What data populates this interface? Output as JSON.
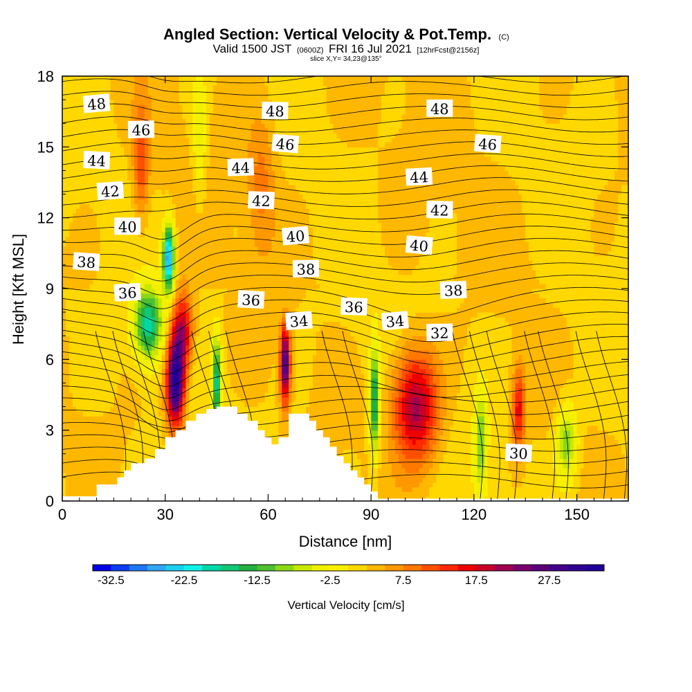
{
  "header": {
    "title": "Angled Section: Vertical Velocity & Pot.Temp.",
    "title_suffix": "(C)",
    "valid_prefix": "Valid 1500 JST",
    "valid_utc": "(0600Z)",
    "valid_date": "FRI 16 Jul 2021",
    "forecast": "[12hrFcst@2156z]",
    "slice": "slice X,Y= 34,23@135°"
  },
  "chart_data": {
    "type": "heatmap",
    "title": "Angled Section: Vertical Velocity & Pot.Temp. (C)",
    "xlabel": "Distance [nm]",
    "ylabel": "Height [Kft MSL]",
    "xlim": [
      0,
      165
    ],
    "ylim": [
      0,
      18
    ],
    "xticks": [
      0,
      30,
      60,
      90,
      120,
      150
    ],
    "yticks": [
      0,
      3,
      6,
      9,
      12,
      15,
      18
    ],
    "xtick_labels": [
      "0",
      "30",
      "60",
      "90",
      "120",
      "150"
    ],
    "ytick_labels": [
      "0",
      "3",
      "6",
      "9",
      "12",
      "15",
      "18"
    ],
    "colorbar": {
      "title": "Vertical Velocity [cm/s]",
      "min": -35,
      "max": 35,
      "step": 2.5,
      "labels": [
        "-32.5",
        "-22.5",
        "-12.5",
        "-2.5",
        "7.5",
        "17.5",
        "27.5"
      ],
      "label_values": [
        -32.5,
        -22.5,
        -12.5,
        -2.5,
        7.5,
        17.5,
        27.5
      ],
      "colors": [
        "#0000e8",
        "#0a3cf0",
        "#1e78f5",
        "#2ea8f5",
        "#1ecef0",
        "#10f0e8",
        "#00d8a8",
        "#10c878",
        "#22b040",
        "#50c030",
        "#8ad818",
        "#c8e800",
        "#f0f000",
        "#f8f000",
        "#ffd800",
        "#ffb800",
        "#ff9800",
        "#ff7800",
        "#ff5000",
        "#ff2800",
        "#ee0000",
        "#c80028",
        "#a00050",
        "#7a006e",
        "#5a007a",
        "#440088",
        "#300090",
        "#200098"
      ]
    },
    "velocity_features": [
      {
        "kind": "updraft",
        "x": 33,
        "y": 5.0,
        "sx": 2.6,
        "sy": 1.8,
        "value": 33
      },
      {
        "kind": "updraft",
        "x": 35,
        "y": 7.2,
        "sx": 3.0,
        "sy": 1.6,
        "value": 18
      },
      {
        "kind": "downdraft",
        "x": 25,
        "y": 7.5,
        "sx": 4.0,
        "sy": 1.5,
        "value": -20
      },
      {
        "kind": "downdraft",
        "x": 31,
        "y": 10.3,
        "sx": 1.6,
        "sy": 1.4,
        "value": -30
      },
      {
        "kind": "downdraft",
        "x": 45,
        "y": 5.0,
        "sx": 1.2,
        "sy": 2.0,
        "value": -20
      },
      {
        "kind": "updraft",
        "x": 65,
        "y": 5.8,
        "sx": 1.4,
        "sy": 1.6,
        "value": 28
      },
      {
        "kind": "downdraft",
        "x": 91,
        "y": 4.2,
        "sx": 1.3,
        "sy": 2.2,
        "value": -20
      },
      {
        "kind": "updraft",
        "x": 103,
        "y": 4.0,
        "sx": 6.5,
        "sy": 2.4,
        "value": 20
      },
      {
        "kind": "downdraft",
        "x": 122,
        "y": 2.5,
        "sx": 1.8,
        "sy": 2.2,
        "value": -12
      },
      {
        "kind": "updraft",
        "x": 133,
        "y": 3.8,
        "sx": 1.8,
        "sy": 1.8,
        "value": 14
      },
      {
        "kind": "downdraft",
        "x": 147,
        "y": 2.5,
        "sx": 3.0,
        "sy": 1.6,
        "value": -12
      },
      {
        "kind": "updraft",
        "x": 23,
        "y": 14.3,
        "sx": 2.2,
        "sy": 2.4,
        "value": 10
      },
      {
        "kind": "updraft",
        "x": 58,
        "y": 13.5,
        "sx": 4.0,
        "sy": 3.0,
        "value": 6
      },
      {
        "kind": "downdraft",
        "x": 40,
        "y": 15.5,
        "sx": 2.0,
        "sy": 3.0,
        "value": -6
      }
    ],
    "isentropes_c": [
      30,
      32,
      34,
      36,
      38,
      40,
      42,
      44,
      46,
      48
    ],
    "contour_labels": [
      {
        "text": "48",
        "x": 10,
        "y": 16.8
      },
      {
        "text": "46",
        "x": 23,
        "y": 15.7
      },
      {
        "text": "44",
        "x": 10,
        "y": 14.4
      },
      {
        "text": "42",
        "x": 14,
        "y": 13.1
      },
      {
        "text": "40",
        "x": 19,
        "y": 11.6
      },
      {
        "text": "38",
        "x": 7,
        "y": 10.1
      },
      {
        "text": "36",
        "x": 19,
        "y": 8.8
      },
      {
        "text": "48",
        "x": 62,
        "y": 16.5
      },
      {
        "text": "46",
        "x": 65,
        "y": 15.1
      },
      {
        "text": "44",
        "x": 52,
        "y": 14.1
      },
      {
        "text": "42",
        "x": 58,
        "y": 12.7
      },
      {
        "text": "40",
        "x": 68,
        "y": 11.2
      },
      {
        "text": "38",
        "x": 71,
        "y": 9.8
      },
      {
        "text": "36",
        "x": 55,
        "y": 8.5
      },
      {
        "text": "34",
        "x": 69,
        "y": 7.6
      },
      {
        "text": "48",
        "x": 110,
        "y": 16.6
      },
      {
        "text": "46",
        "x": 124,
        "y": 15.1
      },
      {
        "text": "44",
        "x": 104,
        "y": 13.7
      },
      {
        "text": "42",
        "x": 110,
        "y": 12.3
      },
      {
        "text": "40",
        "x": 104,
        "y": 10.8
      },
      {
        "text": "38",
        "x": 114,
        "y": 8.9
      },
      {
        "text": "36",
        "x": 85,
        "y": 8.2
      },
      {
        "text": "34",
        "x": 97,
        "y": 7.6
      },
      {
        "text": "32",
        "x": 110,
        "y": 7.1
      },
      {
        "text": "30",
        "x": 133,
        "y": 2.0
      }
    ],
    "terrain_kft": [
      [
        0,
        0.2
      ],
      [
        10,
        0.2
      ],
      [
        10,
        0.7
      ],
      [
        16,
        0.7
      ],
      [
        16,
        1.0
      ],
      [
        18,
        1.0
      ],
      [
        18,
        1.3
      ],
      [
        20,
        1.3
      ],
      [
        20,
        1.6
      ],
      [
        24,
        1.6
      ],
      [
        24,
        1.8
      ],
      [
        27,
        1.8
      ],
      [
        27,
        2.2
      ],
      [
        30,
        2.2
      ],
      [
        30,
        2.7
      ],
      [
        33,
        2.7
      ],
      [
        33,
        3.0
      ],
      [
        36,
        3.0
      ],
      [
        36,
        3.4
      ],
      [
        39,
        3.4
      ],
      [
        39,
        3.7
      ],
      [
        42,
        3.7
      ],
      [
        42,
        3.9
      ],
      [
        45,
        3.9
      ],
      [
        45,
        4.0
      ],
      [
        51,
        4.0
      ],
      [
        51,
        3.7
      ],
      [
        54,
        3.7
      ],
      [
        54,
        3.4
      ],
      [
        57,
        3.4
      ],
      [
        57,
        3.0
      ],
      [
        59,
        3.0
      ],
      [
        59,
        2.7
      ],
      [
        61,
        2.7
      ],
      [
        61,
        2.4
      ],
      [
        63,
        2.4
      ],
      [
        63,
        2.7
      ],
      [
        66,
        2.7
      ],
      [
        66,
        3.7
      ],
      [
        72,
        3.7
      ],
      [
        72,
        3.4
      ],
      [
        74,
        3.4
      ],
      [
        74,
        3.0
      ],
      [
        76,
        3.0
      ],
      [
        76,
        2.7
      ],
      [
        78,
        2.7
      ],
      [
        78,
        2.3
      ],
      [
        80,
        2.3
      ],
      [
        80,
        1.9
      ],
      [
        82,
        1.9
      ],
      [
        82,
        1.6
      ],
      [
        84,
        1.6
      ],
      [
        84,
        1.3
      ],
      [
        86,
        1.3
      ],
      [
        86,
        1.0
      ],
      [
        88,
        1.0
      ],
      [
        88,
        0.7
      ],
      [
        90,
        0.7
      ],
      [
        90,
        0.4
      ],
      [
        92,
        0.4
      ],
      [
        92,
        0.1
      ],
      [
        165,
        0.1
      ]
    ]
  }
}
